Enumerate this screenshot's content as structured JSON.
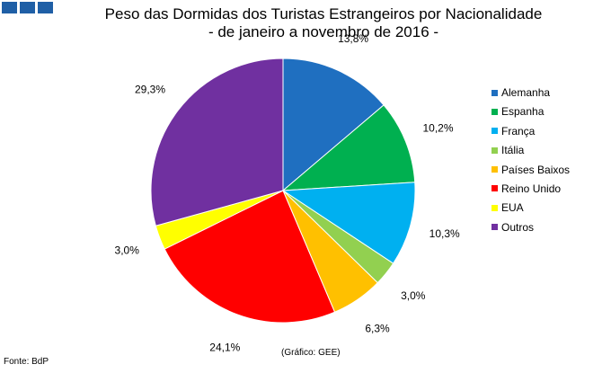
{
  "header": {
    "logo_icon": "gee-logo-icon",
    "title_line1": "Peso das Dormidas dos Turistas Estrangeiros por Nacionalidade",
    "title_line2": "- de janeiro a novembro de 2016 -"
  },
  "chart_data": {
    "type": "pie",
    "title": "Peso das Dormidas dos Turistas Estrangeiros por Nacionalidade - de janeiro a novembro de 2016 -",
    "start": "12 o'clock",
    "direction": "clockwise",
    "legend_position": "right",
    "slices": [
      {
        "name": "Alemanha",
        "value": 13.8,
        "label": "13,8%",
        "color": "#1f6fc0"
      },
      {
        "name": "Espanha",
        "value": 10.2,
        "label": "10,2%",
        "color": "#00b050"
      },
      {
        "name": "França",
        "value": 10.3,
        "label": "10,3%",
        "color": "#00b0f0"
      },
      {
        "name": "Itália",
        "value": 3.0,
        "label": "3,0%",
        "color": "#92d050"
      },
      {
        "name": "Países Baixos",
        "value": 6.3,
        "label": "6,3%",
        "color": "#ffc000"
      },
      {
        "name": "Reino Unido",
        "value": 24.1,
        "label": "24,1%",
        "color": "#ff0000"
      },
      {
        "name": "EUA",
        "value": 3.0,
        "label": "3,0%",
        "color": "#ffff00"
      },
      {
        "name": "Outros",
        "value": 29.3,
        "label": "29,3%",
        "color": "#7030a0"
      }
    ]
  },
  "footer": {
    "source": "Fonte: BdP",
    "credit": "(Gráfico: GEE)"
  }
}
